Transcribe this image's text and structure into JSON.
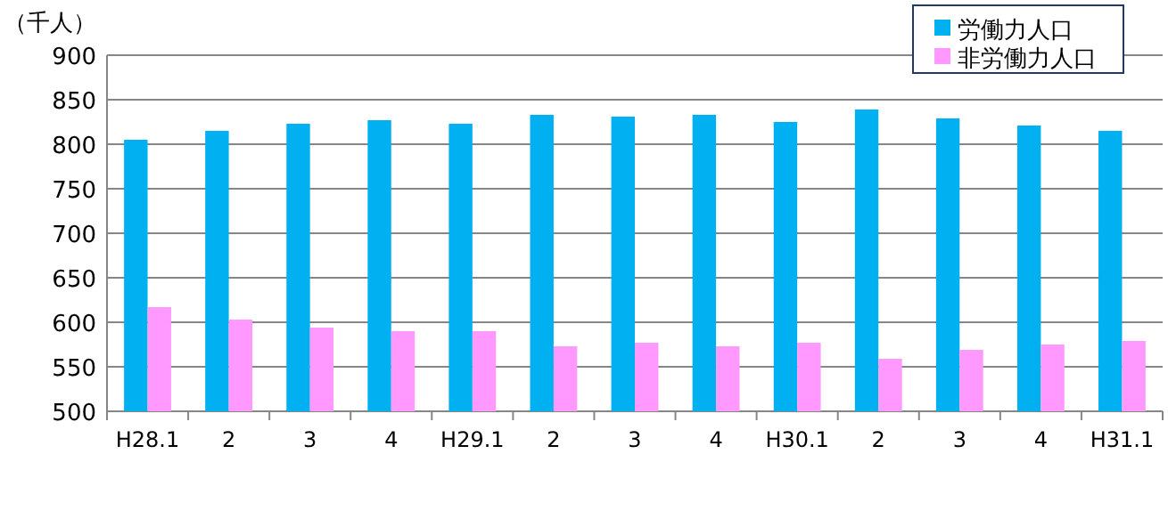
{
  "chart_data": {
    "type": "bar",
    "ylabel": "（千人）",
    "categories": [
      "H28.1",
      "2",
      "3",
      "4",
      "H29.1",
      "2",
      "3",
      "4",
      "H30.1",
      "2",
      "3",
      "4",
      "H31.1"
    ],
    "series": [
      {
        "name": "労働力人口",
        "color": "#00b0f0",
        "values": [
          805,
          815,
          823,
          827,
          823,
          833,
          831,
          833,
          825,
          839,
          829,
          821,
          815
        ]
      },
      {
        "name": "非労働力人口",
        "color": "#ff99ff",
        "values": [
          617,
          603,
          594,
          590,
          590,
          573,
          577,
          573,
          577,
          559,
          569,
          575,
          579
        ]
      }
    ],
    "ylim": [
      500,
      900
    ],
    "yticks": [
      500,
      550,
      600,
      650,
      700,
      750,
      800,
      850,
      900
    ],
    "grid": "y",
    "legend": "top right"
  }
}
